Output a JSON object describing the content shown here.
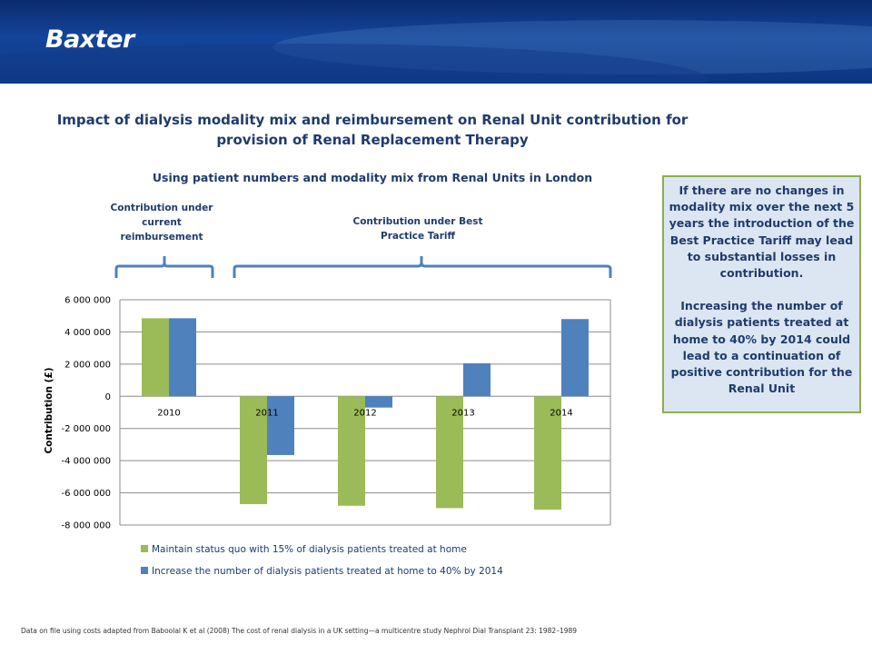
{
  "brand": "Baxter",
  "title": "Impact of dialysis modality mix and reimbursement on Renal Unit contribution for provision of Renal Replacement Therapy",
  "subtitle": "Using patient numbers and modality mix from Renal Units in London",
  "annotations": {
    "current": "Contribution under current reimbursement",
    "best_practice": "Contribution under Best Practice Tariff"
  },
  "info_box": {
    "para1": "If there are no changes in modality mix over the next 5 years the introduction of the Best Practice Tariff may lead to substantial losses in contribution.",
    "para2": "Increasing the number of dialysis patients treated at home to 40% by 2014 could lead to a continuation of positive contribution for the Renal Unit"
  },
  "footnote": "Data on file using costs adapted from Baboolal K et al (2008) The cost of renal dialysis in a UK setting—a multicentre study Nephrol Dial Transplant 23: 1982–1989",
  "colors": {
    "series1": "#9bbb59",
    "series2": "#4f81bd",
    "bracket": "#4f81bd",
    "text": "#1f3b6e",
    "box_border": "#8db04b",
    "box_fill": "#dce6f2"
  },
  "chart_data": {
    "type": "bar",
    "categories": [
      "2010",
      "2011",
      "2012",
      "2013",
      "2014"
    ],
    "series": [
      {
        "name": "Maintain status quo with 15% of dialysis patients treated at home",
        "values": [
          4850000,
          -6700000,
          -6800000,
          -6950000,
          -7050000
        ]
      },
      {
        "name": "Increase the number of dialysis patients treated at home to 40% by 2014",
        "values": [
          4850000,
          -3650000,
          -700000,
          2050000,
          4800000
        ]
      }
    ],
    "ylabel": "Contribution (£)",
    "ylim": [
      -8000000,
      6000000
    ],
    "yticks": [
      6000000,
      4000000,
      2000000,
      0,
      -2000000,
      -4000000,
      -6000000,
      -8000000
    ],
    "ytick_labels": [
      "6 000 000",
      "4 000 000",
      "2 000 000",
      "0",
      "-2 000 000",
      "-4 000 000",
      "-6 000 000",
      "-8 000 000"
    ],
    "grid": true,
    "legend": "bottom"
  }
}
